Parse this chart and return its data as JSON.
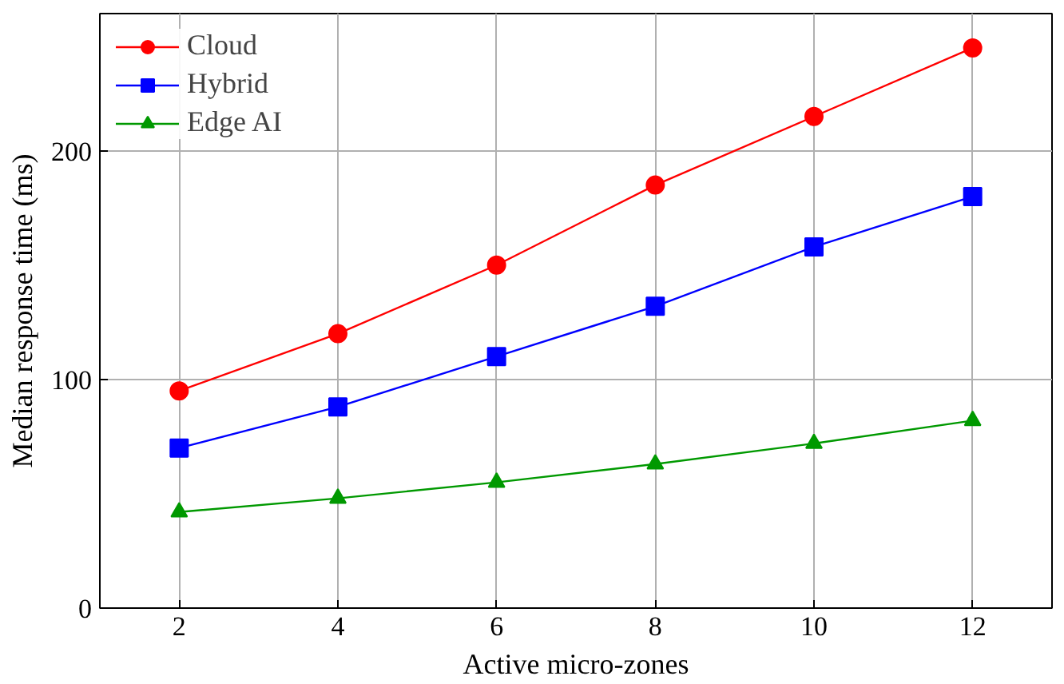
{
  "chart_data": {
    "type": "line",
    "xlabel": "Active micro-zones",
    "ylabel": "Median response time (ms)",
    "x": [
      2,
      4,
      6,
      8,
      10,
      12
    ],
    "xlim": [
      1,
      13
    ],
    "xticks": [
      2,
      4,
      6,
      8,
      10,
      12
    ],
    "ylim": [
      0,
      260
    ],
    "yticks": [
      0,
      100,
      200
    ],
    "grid": true,
    "legend": "top left",
    "line_style": "solid",
    "series": [
      {
        "name": "Cloud",
        "color": "#ff0000",
        "marker": "circle",
        "values": [
          95,
          120,
          150,
          185,
          215,
          245
        ]
      },
      {
        "name": "Hybrid",
        "color": "#0000ff",
        "marker": "square",
        "values": [
          70,
          88,
          110,
          132,
          158,
          180
        ]
      },
      {
        "name": "Edge AI",
        "color": "#009900",
        "marker": "triangle",
        "values": [
          42,
          48,
          55,
          63,
          72,
          82
        ]
      }
    ]
  }
}
